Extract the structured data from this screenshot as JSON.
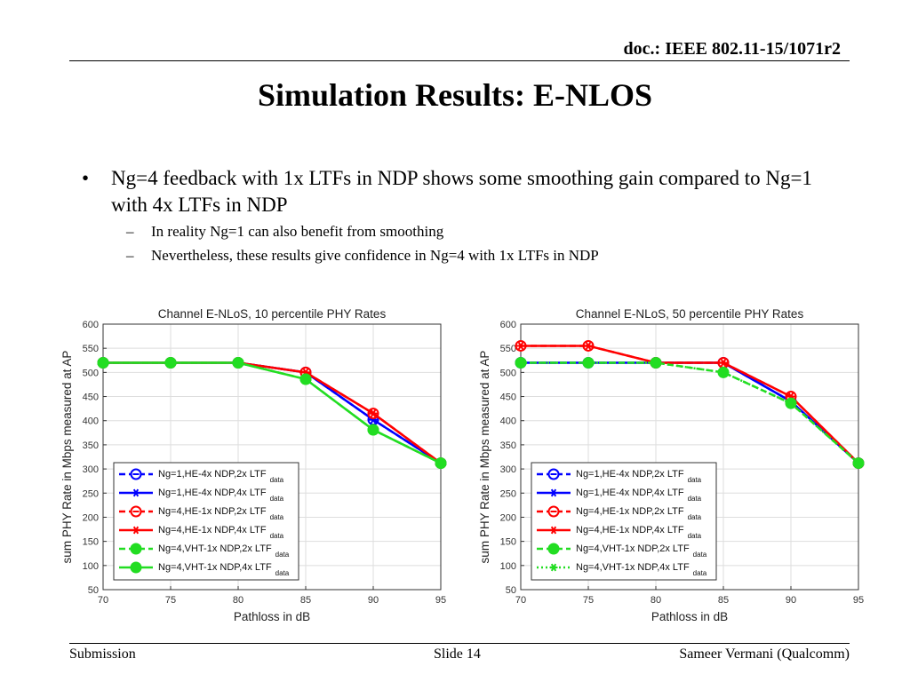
{
  "header": {
    "doc_id": "doc.: IEEE 802.11-15/1071r2"
  },
  "title": "Simulation Results: E-NLOS",
  "bullets": {
    "main": "Ng=4 feedback with 1x LTFs in NDP shows some smoothing gain compared to Ng=1 with 4x LTFs in NDP",
    "sub": [
      "In reality Ng=1 can also benefit from smoothing",
      "Nevertheless, these results give confidence in Ng=4 with 1x LTFs in NDP"
    ]
  },
  "chart_data": [
    {
      "type": "line",
      "title": "Channel E-NLoS, 10 percentile PHY Rates",
      "xlabel": "Pathloss in dB",
      "ylabel": "sum PHY Rate in Mbps measured at AP",
      "xlim": [
        70,
        95
      ],
      "ylim": [
        50,
        600
      ],
      "xticks": [
        70,
        75,
        80,
        85,
        90,
        95
      ],
      "yticks": [
        50,
        100,
        150,
        200,
        250,
        300,
        350,
        400,
        450,
        500,
        550,
        600
      ],
      "grid": true,
      "legend_position": "lower-left",
      "x": [
        70,
        75,
        80,
        85,
        90,
        95
      ],
      "series": [
        {
          "name": "Ng=1,HE-4x NDP,2x LTF",
          "sub": "data",
          "color": "#0000ff",
          "dash": "dashed",
          "marker": "circle-line",
          "values": [
            520,
            520,
            520,
            500,
            402,
            312
          ]
        },
        {
          "name": "Ng=1,HE-4x NDP,4x LTF",
          "sub": "data",
          "color": "#0000ff",
          "dash": "solid",
          "marker": "star",
          "values": [
            520,
            520,
            520,
            500,
            402,
            312
          ]
        },
        {
          "name": "Ng=4,HE-1x NDP,2x LTF",
          "sub": "data",
          "color": "#ff0000",
          "dash": "dashed",
          "marker": "circle-line",
          "values": [
            520,
            520,
            520,
            500,
            415,
            312
          ]
        },
        {
          "name": "Ng=4,HE-1x NDP,4x LTF",
          "sub": "data",
          "color": "#ff0000",
          "dash": "solid",
          "marker": "star",
          "values": [
            520,
            520,
            520,
            500,
            415,
            312
          ]
        },
        {
          "name": "Ng=4,VHT-1x NDP,2x LTF",
          "sub": "data",
          "color": "#22dd22",
          "dash": "dashed",
          "marker": "filled",
          "values": [
            520,
            520,
            520,
            486,
            381,
            312
          ]
        },
        {
          "name": "Ng=4,VHT-1x NDP,4x LTF",
          "sub": "data",
          "color": "#22dd22",
          "dash": "solid",
          "marker": "filled",
          "values": [
            520,
            520,
            520,
            486,
            381,
            312
          ]
        }
      ]
    },
    {
      "type": "line",
      "title": "Channel E-NLoS, 50 percentile PHY Rates",
      "xlabel": "Pathloss in dB",
      "ylabel": "sum PHY Rate in Mbps measured at AP",
      "xlim": [
        70,
        95
      ],
      "ylim": [
        50,
        600
      ],
      "xticks": [
        70,
        75,
        80,
        85,
        90,
        95
      ],
      "yticks": [
        50,
        100,
        150,
        200,
        250,
        300,
        350,
        400,
        450,
        500,
        550,
        600
      ],
      "grid": true,
      "legend_position": "lower-left",
      "x": [
        70,
        75,
        80,
        85,
        90,
        95
      ],
      "series": [
        {
          "name": "Ng=1,HE-4x NDP,2x LTF",
          "sub": "data",
          "color": "#0000ff",
          "dash": "dashed",
          "marker": "circle-line",
          "values": [
            520,
            520,
            520,
            520,
            440,
            312
          ]
        },
        {
          "name": "Ng=1,HE-4x NDP,4x LTF",
          "sub": "data",
          "color": "#0000ff",
          "dash": "solid",
          "marker": "star",
          "values": [
            520,
            520,
            520,
            520,
            440,
            312
          ]
        },
        {
          "name": "Ng=4,HE-1x NDP,2x LTF",
          "sub": "data",
          "color": "#ff0000",
          "dash": "dashed",
          "marker": "circle-line",
          "values": [
            555,
            555,
            520,
            520,
            450,
            312
          ]
        },
        {
          "name": "Ng=4,HE-1x NDP,4x LTF",
          "sub": "data",
          "color": "#ff0000",
          "dash": "solid",
          "marker": "star",
          "values": [
            555,
            555,
            520,
            520,
            450,
            312
          ]
        },
        {
          "name": "Ng=4,VHT-1x NDP,2x LTF",
          "sub": "data",
          "color": "#22dd22",
          "dash": "dashed",
          "marker": "filled",
          "values": [
            520,
            520,
            520,
            500,
            436,
            312
          ]
        },
        {
          "name": "Ng=4,VHT-1x NDP,4x LTF",
          "sub": "data",
          "color": "#22dd22",
          "dash": "dotted",
          "marker": "star",
          "values": [
            520,
            520,
            520,
            500,
            436,
            312
          ]
        }
      ]
    }
  ],
  "footer": {
    "left": "Submission",
    "center": "Slide 14",
    "right": "Sameer Vermani (Qualcomm)"
  }
}
